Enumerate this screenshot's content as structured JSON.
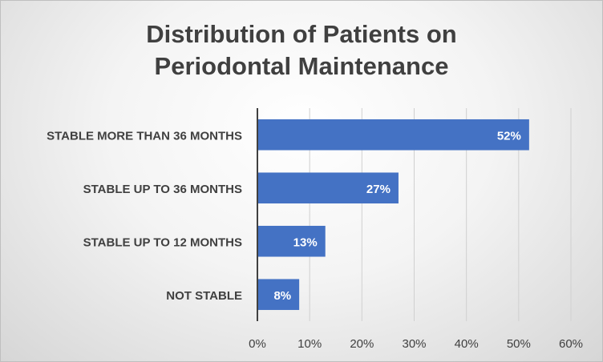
{
  "chart_data": {
    "type": "bar",
    "orientation": "horizontal",
    "title_lines": [
      "Distribution of Patients on",
      "Periodontal Maintenance"
    ],
    "categories": [
      "STABLE MORE THAN 36 MONTHS",
      "STABLE UP TO 36 MONTHS",
      "STABLE UP TO 12 MONTHS",
      "NOT STABLE"
    ],
    "values": [
      52,
      27,
      13,
      8
    ],
    "data_labels": [
      "52%",
      "27%",
      "13%",
      "8%"
    ],
    "xlim": [
      0,
      60
    ],
    "x_ticks": [
      0,
      10,
      20,
      30,
      40,
      50,
      60
    ],
    "x_tick_labels": [
      "0%",
      "10%",
      "20%",
      "30%",
      "40%",
      "50%",
      "60%"
    ],
    "grid": "vertical",
    "bar_color": "#4472C4",
    "xlabel": "",
    "ylabel": ""
  }
}
